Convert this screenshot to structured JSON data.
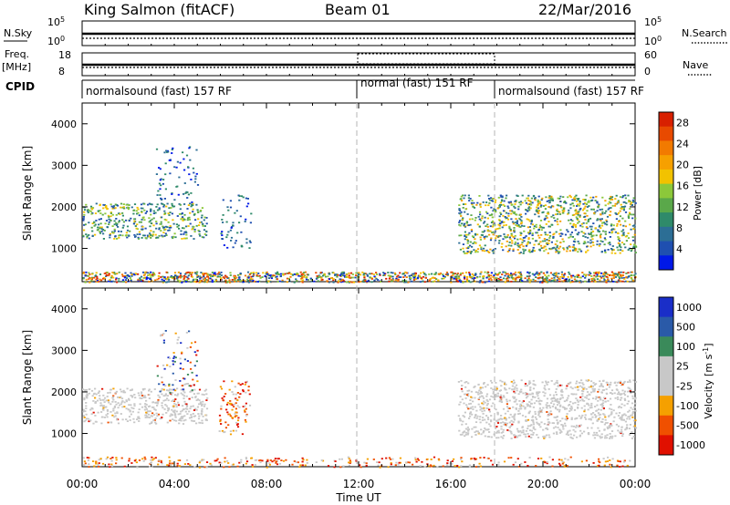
{
  "header": {
    "station": "King Salmon (fitACF)",
    "beam": "Beam 01",
    "date": "22/Mar/2016"
  },
  "noise_panel": {
    "left_label": "N.Sky",
    "right_label": "N.Search",
    "left_ticks": [
      "10^5",
      "10^0"
    ],
    "right_ticks": [
      "10^5",
      "10^0"
    ]
  },
  "freq_panel": {
    "left_label_1": "Freq.",
    "left_label_2": "[MHz]",
    "right_label": "Nave",
    "left_ticks": [
      "18",
      "8"
    ],
    "right_ticks": [
      "60",
      "0"
    ]
  },
  "cpid": {
    "label": "CPID",
    "segments": [
      {
        "label": "normalsound (fast) 157 RF",
        "start_hour": 0,
        "end_hour": 12
      },
      {
        "label": "normal (fast) 151 RF",
        "start_hour": 12,
        "end_hour": 18
      },
      {
        "label": "normalsound (fast) 157 RF",
        "start_hour": 18,
        "end_hour": 24
      }
    ]
  },
  "time_axis": {
    "label": "Time UT",
    "ticks": [
      "00:00",
      "04:00",
      "08:00",
      "12:00",
      "16:00",
      "20:00",
      "00:00"
    ]
  },
  "chart_data": [
    {
      "type": "heatmap",
      "panel": "power",
      "ylabel": "Slant Range [km]",
      "xlim": [
        0,
        24
      ],
      "ylim": [
        200,
        4500
      ],
      "yticks": [
        1000,
        2000,
        3000,
        4000
      ],
      "colorbar": {
        "label": "Power [dB]",
        "ticks": [
          4,
          8,
          12,
          16,
          20,
          24,
          28
        ],
        "range": [
          0,
          30
        ]
      },
      "echo_regions": [
        {
          "hour_start": 0.0,
          "hour_end": 5.4,
          "range_min": 1250,
          "range_max": 2100,
          "level": "moderate"
        },
        {
          "hour_start": 3.2,
          "hour_end": 5.0,
          "range_min": 2000,
          "range_max": 3500,
          "level": "weak"
        },
        {
          "hour_start": 5.9,
          "hour_end": 7.3,
          "range_min": 1000,
          "range_max": 2300,
          "level": "weak"
        },
        {
          "hour_start": 16.3,
          "hour_end": 24.0,
          "range_min": 900,
          "range_max": 2300,
          "level": "strong"
        },
        {
          "hour_start": 0.0,
          "hour_end": 24.0,
          "range_min": 200,
          "range_max": 450,
          "level": "ground"
        }
      ]
    },
    {
      "type": "heatmap",
      "panel": "velocity",
      "ylabel": "Slant Range [km]",
      "xlim": [
        0,
        24
      ],
      "ylim": [
        200,
        4500
      ],
      "yticks": [
        1000,
        2000,
        3000,
        4000
      ],
      "colorbar": {
        "label": "Velocity [m s-1]",
        "ticks": [
          "1000",
          "500",
          "100",
          "25",
          "-25",
          "-100",
          "-500",
          "-1000"
        ]
      },
      "echo_regions": [
        {
          "hour_start": 0.0,
          "hour_end": 5.4,
          "range_min": 1250,
          "range_max": 2100,
          "level": "near-zero"
        },
        {
          "hour_start": 3.2,
          "hour_end": 5.0,
          "range_min": 2000,
          "range_max": 3500,
          "level": "mixed"
        },
        {
          "hour_start": 5.9,
          "hour_end": 7.3,
          "range_min": 1000,
          "range_max": 2300,
          "level": "negative"
        },
        {
          "hour_start": 16.3,
          "hour_end": 24.0,
          "range_min": 900,
          "range_max": 2300,
          "level": "near-zero"
        },
        {
          "hour_start": 0.0,
          "hour_end": 24.0,
          "range_min": 200,
          "range_max": 450,
          "level": "negative"
        }
      ]
    }
  ],
  "colors": {
    "power_scale": [
      "#0018e8",
      "#1f4fb0",
      "#2c6e95",
      "#2f8a6a",
      "#5aa84a",
      "#8cc83a",
      "#f2c200",
      "#f6a000",
      "#f27a00",
      "#e84a00",
      "#d82000"
    ],
    "velocity_scale": [
      "#1a2ec8",
      "#2a5aa8",
      "#3a8a5a",
      "#c8c8c8",
      "#c8c8c8",
      "#f5a000",
      "#f05000",
      "#e01000"
    ],
    "dashed_line": "#b4b4b4"
  }
}
